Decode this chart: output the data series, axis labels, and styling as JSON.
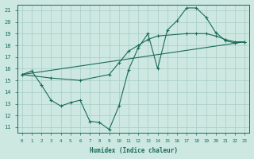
{
  "xlabel": "Humidex (Indice chaleur)",
  "xlim": [
    -0.5,
    23.5
  ],
  "ylim": [
    10.5,
    21.5
  ],
  "yticks": [
    11,
    12,
    13,
    14,
    15,
    16,
    17,
    18,
    19,
    20,
    21
  ],
  "xticks": [
    0,
    1,
    2,
    3,
    4,
    5,
    6,
    7,
    8,
    9,
    10,
    11,
    12,
    13,
    14,
    15,
    16,
    17,
    18,
    19,
    20,
    21,
    22,
    23
  ],
  "bg_color": "#cce8e0",
  "line_color": "#1a6b5a",
  "grid_color": "#a8ccc4",
  "lines": [
    {
      "x": [
        0,
        1,
        2,
        3,
        4,
        5,
        6,
        7,
        8,
        9,
        10,
        11,
        12,
        13,
        14,
        15,
        16,
        17,
        18,
        19,
        20,
        21,
        22,
        23
      ],
      "y": [
        15.5,
        15.8,
        14.6,
        13.3,
        12.8,
        13.1,
        13.3,
        11.5,
        11.4,
        10.8,
        12.8,
        15.9,
        17.8,
        19.0,
        16.0,
        19.3,
        20.1,
        21.2,
        21.2,
        20.4,
        19.1,
        18.4,
        18.2,
        18.3
      ],
      "has_markers": true
    },
    {
      "x": [
        0,
        3,
        6,
        9,
        10,
        11,
        12,
        13,
        14,
        17,
        18,
        19,
        20,
        21,
        22,
        23
      ],
      "y": [
        15.5,
        15.2,
        15.0,
        15.5,
        16.5,
        17.5,
        18.0,
        18.5,
        18.8,
        19.0,
        19.0,
        19.0,
        18.8,
        18.5,
        18.3,
        18.3
      ],
      "has_markers": true
    },
    {
      "x": [
        0,
        23
      ],
      "y": [
        15.5,
        18.3
      ],
      "has_markers": false
    }
  ]
}
